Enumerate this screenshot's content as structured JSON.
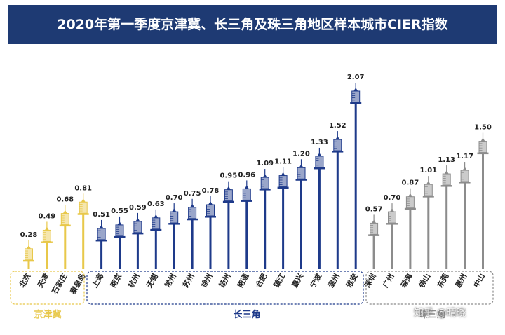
{
  "title": "2020年第一季度京津冀、长三角及珠三角地区样本城市CIER指数",
  "watermark": "知乎 @晴晓",
  "chart_data": {
    "type": "bar",
    "title": "2020年第一季度京津冀、长三角及珠三角地区样本城市CIER指数",
    "bar_style": "syringe",
    "ylim": [
      0,
      2.07
    ],
    "grid": false,
    "groups": [
      {
        "name": "京津冀",
        "color": "#e8c84a",
        "categories": [
          "北京",
          "天津",
          "石家庄",
          "秦皇岛"
        ],
        "values": [
          0.28,
          0.49,
          0.68,
          0.81
        ],
        "value_labels": [
          "0.28",
          "0.49",
          "0.68",
          "0.81"
        ]
      },
      {
        "name": "长三角",
        "color": "#1e3a8a",
        "categories": [
          "上海",
          "南京",
          "杭州",
          "无锡",
          "常州",
          "苏州",
          "徐州",
          "扬州",
          "南通",
          "合肥",
          "镇江",
          "嘉兴",
          "宁波",
          "温州",
          "淮安"
        ],
        "values": [
          0.51,
          0.55,
          0.59,
          0.63,
          0.7,
          0.75,
          0.78,
          0.95,
          0.96,
          1.09,
          1.11,
          1.2,
          1.33,
          1.52,
          2.07
        ],
        "value_labels": [
          "0.51",
          "0.55",
          "0.59",
          "0.63",
          "0.70",
          "0.75",
          "0.78",
          "0.95",
          "0.96",
          "1.09",
          "1.11",
          "1.20",
          "1.33",
          "1.52",
          "2.07"
        ]
      },
      {
        "name": "珠三角",
        "color": "#8c8c8c",
        "categories": [
          "深圳",
          "广州",
          "珠海",
          "佛山",
          "东莞",
          "惠州",
          "中山"
        ],
        "values": [
          0.57,
          0.7,
          0.87,
          1.01,
          1.13,
          1.17,
          1.5
        ],
        "value_labels": [
          "0.57",
          "0.70",
          "0.87",
          "1.01",
          "1.13",
          "1.17",
          "1.50"
        ]
      }
    ]
  }
}
